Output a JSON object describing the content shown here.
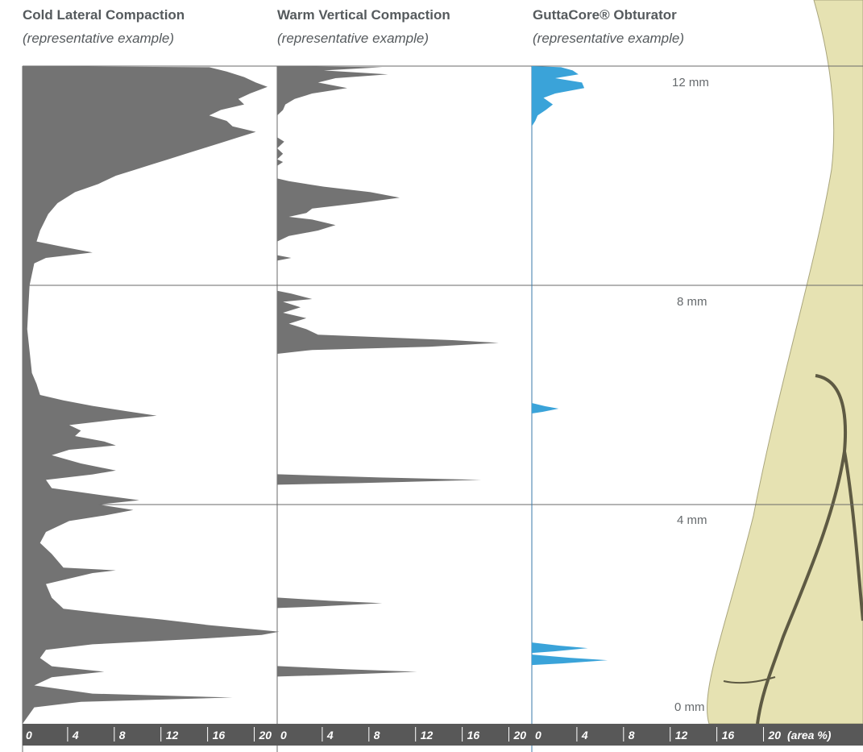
{
  "headers": [
    {
      "title": "Cold Lateral Compaction",
      "subtitle": "(representative example)"
    },
    {
      "title": "Warm Vertical Compaction",
      "subtitle": "(representative example)"
    },
    {
      "title": "GuttaCore® Obturator",
      "subtitle": "(representative example)"
    }
  ],
  "depth_labels": {
    "top": "12 mm",
    "upper": "8 mm",
    "lower": "4 mm",
    "bottom": "0 mm"
  },
  "colors": {
    "cold": "#737373",
    "warm": "#737373",
    "gutta": "#3aa3d9",
    "axis_bar": "#585858",
    "grid": "#6a6a6a",
    "tooth": "#e6e2b2",
    "tooth_dark": "#5e5a43"
  },
  "chart_data": {
    "type": "area",
    "orientation": "horizontal",
    "ylabel": "",
    "y_range_mm": [
      0,
      12
    ],
    "x_range": [
      0,
      21
    ],
    "x_ticks": [
      "0",
      "4",
      "8",
      "12",
      "16",
      "20"
    ],
    "x_unit_label": "(area %)",
    "series": [
      {
        "name": "Cold Lateral Compaction",
        "color_key": "cold",
        "points": [
          [
            12.0,
            0
          ],
          [
            11.98,
            16
          ],
          [
            11.9,
            17.5
          ],
          [
            11.8,
            19
          ],
          [
            11.7,
            20
          ],
          [
            11.62,
            21
          ],
          [
            11.5,
            19.5
          ],
          [
            11.4,
            18.5
          ],
          [
            11.3,
            19
          ],
          [
            11.2,
            17
          ],
          [
            11.1,
            16
          ],
          [
            11.0,
            17.5
          ],
          [
            10.9,
            18
          ],
          [
            10.8,
            20
          ],
          [
            10.7,
            18.5
          ],
          [
            10.6,
            17
          ],
          [
            10.5,
            15.5
          ],
          [
            10.4,
            14
          ],
          [
            10.3,
            12.5
          ],
          [
            10.2,
            11
          ],
          [
            10.1,
            9.5
          ],
          [
            10.0,
            8
          ],
          [
            9.85,
            6.5
          ],
          [
            9.7,
            4.5
          ],
          [
            9.5,
            3
          ],
          [
            9.3,
            2.2
          ],
          [
            9.0,
            1.5
          ],
          [
            8.8,
            1.2
          ],
          [
            8.7,
            3.5
          ],
          [
            8.6,
            6
          ],
          [
            8.5,
            2
          ],
          [
            8.4,
            1
          ],
          [
            8.2,
            0.8
          ],
          [
            8.0,
            0.6
          ],
          [
            7.6,
            0.5
          ],
          [
            7.2,
            0.4
          ],
          [
            6.8,
            0.6
          ],
          [
            6.4,
            0.8
          ],
          [
            6.2,
            1.2
          ],
          [
            6.0,
            1.5
          ],
          [
            5.9,
            3.5
          ],
          [
            5.8,
            6
          ],
          [
            5.7,
            9
          ],
          [
            5.62,
            11.5
          ],
          [
            5.55,
            8
          ],
          [
            5.45,
            4
          ],
          [
            5.35,
            5
          ],
          [
            5.25,
            4.5
          ],
          [
            5.15,
            7
          ],
          [
            5.08,
            8
          ],
          [
            5.0,
            4
          ],
          [
            4.9,
            2.5
          ],
          [
            4.75,
            5
          ],
          [
            4.62,
            8
          ],
          [
            4.55,
            6
          ],
          [
            4.45,
            2
          ],
          [
            4.3,
            2.5
          ],
          [
            4.15,
            7.5
          ],
          [
            4.08,
            10
          ],
          [
            4.0,
            6.5
          ],
          [
            3.9,
            9.5
          ],
          [
            3.8,
            7
          ],
          [
            3.7,
            4
          ],
          [
            3.5,
            2
          ],
          [
            3.3,
            1.5
          ],
          [
            3.1,
            2.5
          ],
          [
            2.85,
            3.5
          ],
          [
            2.8,
            8
          ],
          [
            2.75,
            6
          ],
          [
            2.55,
            2
          ],
          [
            2.3,
            2.5
          ],
          [
            2.1,
            3.5
          ],
          [
            2.0,
            7.5
          ],
          [
            1.9,
            12
          ],
          [
            1.8,
            16
          ],
          [
            1.72,
            20
          ],
          [
            1.68,
            22
          ],
          [
            1.62,
            20.5
          ],
          [
            1.55,
            15
          ],
          [
            1.45,
            6
          ],
          [
            1.35,
            2
          ],
          [
            1.2,
            1.5
          ],
          [
            1.05,
            2.5
          ],
          [
            0.95,
            7
          ],
          [
            0.85,
            2.5
          ],
          [
            0.7,
            1
          ],
          [
            0.55,
            6
          ],
          [
            0.48,
            18
          ],
          [
            0.4,
            5
          ],
          [
            0.3,
            1
          ],
          [
            0.0,
            0
          ]
        ]
      },
      {
        "name": "Warm Vertical Compaction",
        "color_key": "warm",
        "points": [
          [
            12.0,
            0
          ],
          [
            11.98,
            9
          ],
          [
            11.92,
            4
          ],
          [
            11.85,
            9.5
          ],
          [
            11.78,
            5
          ],
          [
            11.7,
            3.5
          ],
          [
            11.6,
            6
          ],
          [
            11.5,
            3
          ],
          [
            11.4,
            1.5
          ],
          [
            11.3,
            0.7
          ],
          [
            11.2,
            0.5
          ],
          [
            11.1,
            0
          ],
          [
            10.7,
            0
          ],
          [
            10.62,
            0.6
          ],
          [
            10.5,
            0
          ],
          [
            10.4,
            0.5
          ],
          [
            10.3,
            0
          ],
          [
            10.25,
            0.5
          ],
          [
            10.18,
            0
          ],
          [
            9.95,
            0
          ],
          [
            9.9,
            1
          ],
          [
            9.8,
            4
          ],
          [
            9.7,
            8
          ],
          [
            9.6,
            10.5
          ],
          [
            9.5,
            7
          ],
          [
            9.4,
            3
          ],
          [
            9.32,
            2.5
          ],
          [
            9.25,
            1
          ],
          [
            9.2,
            3
          ],
          [
            9.1,
            5
          ],
          [
            9.0,
            3.5
          ],
          [
            8.9,
            1
          ],
          [
            8.8,
            0
          ],
          [
            8.55,
            0
          ],
          [
            8.5,
            1.2
          ],
          [
            8.45,
            0
          ],
          [
            7.9,
            0
          ],
          [
            7.85,
            1.2
          ],
          [
            7.75,
            3
          ],
          [
            7.7,
            0.5
          ],
          [
            7.6,
            2
          ],
          [
            7.5,
            0.5
          ],
          [
            7.4,
            2.5
          ],
          [
            7.3,
            1
          ],
          [
            7.2,
            2.5
          ],
          [
            7.1,
            3.5
          ],
          [
            7.0,
            15
          ],
          [
            6.95,
            19
          ],
          [
            6.88,
            13
          ],
          [
            6.82,
            3
          ],
          [
            6.75,
            0
          ],
          [
            0.9,
            0
          ],
          [
            0.85,
            0
          ],
          [
            5.0,
            0
          ]
        ]
      },
      {
        "name": "GuttaCore® Obturator",
        "color_key": "gutta",
        "points": [
          [
            12.0,
            0
          ],
          [
            11.98,
            2.5
          ],
          [
            11.92,
            3.5
          ],
          [
            11.85,
            4
          ],
          [
            11.78,
            2
          ],
          [
            11.7,
            4.3
          ],
          [
            11.6,
            4.5
          ],
          [
            11.5,
            2
          ],
          [
            11.42,
            1
          ],
          [
            11.3,
            1.8
          ],
          [
            11.2,
            1.2
          ],
          [
            11.1,
            0.5
          ],
          [
            11.0,
            0.3
          ],
          [
            10.9,
            0
          ]
        ]
      }
    ]
  }
}
